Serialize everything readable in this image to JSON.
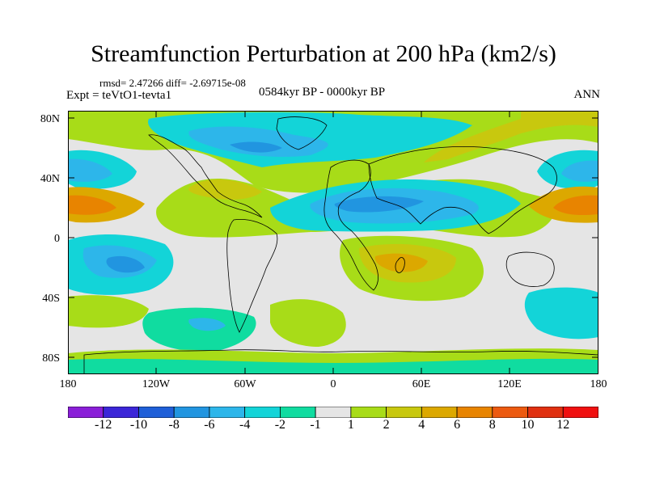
{
  "header": {
    "title": "Streamfunction Perturbation at 200 hPa (km2/s)",
    "stats": "rmsd= 2.47266 diff= -2.69715e-08",
    "expt": "Expt = teVtO1-tevta1",
    "period": "0584kyr BP - 0000kyr BP",
    "season": "ANN"
  },
  "axes": {
    "lat_labels": [
      "80N",
      "40N",
      "0",
      "40S",
      "80S"
    ],
    "lon_labels": [
      "180",
      "120W",
      "60W",
      "0",
      "60E",
      "120E",
      "180"
    ]
  },
  "colorbar": {
    "labels": [
      "-12",
      "-10",
      "-8",
      "-6",
      "-4",
      "-2",
      "-1",
      "1",
      "2",
      "4",
      "6",
      "8",
      "10",
      "12"
    ],
    "colors": [
      "#8a1ed8",
      "#3b26d8",
      "#1f5fd8",
      "#2195e0",
      "#2db6ea",
      "#13d4d8",
      "#10dca0",
      "#e5e5e5",
      "#a8dc18",
      "#c8c80e",
      "#dca800",
      "#e88400",
      "#ec5a10",
      "#e03010",
      "#f01010"
    ]
  }
}
